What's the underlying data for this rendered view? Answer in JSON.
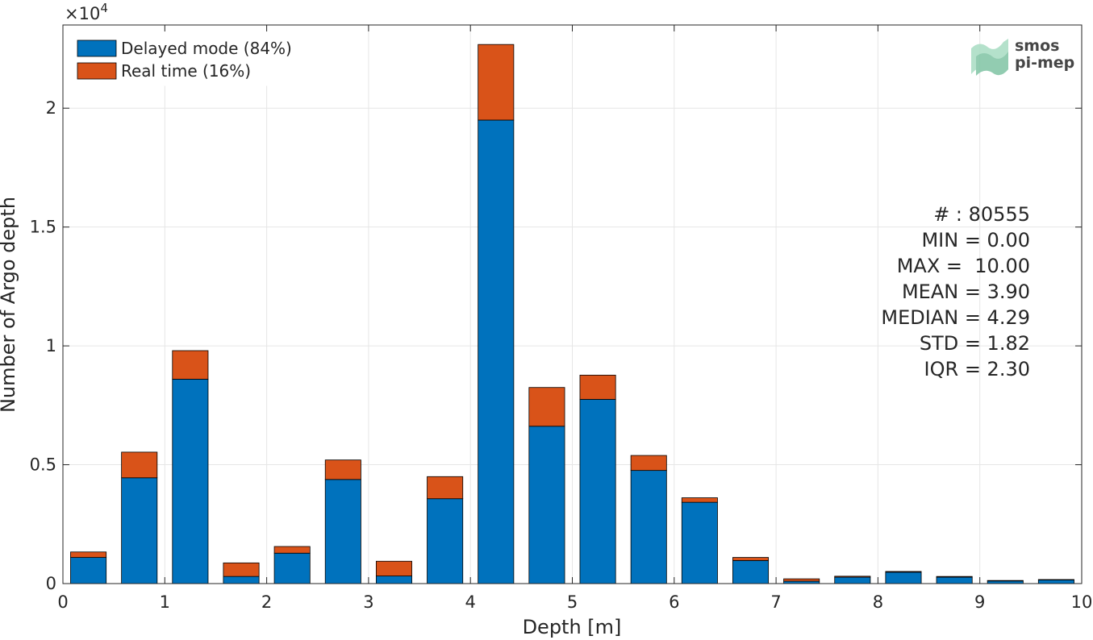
{
  "chart_data": {
    "type": "bar",
    "stacked": true,
    "xlabel": "Depth [m]",
    "ylabel": "Number of Argo depth",
    "xlim": [
      0,
      10
    ],
    "ylim": [
      0,
      23500
    ],
    "y_exponent_label": "×10",
    "y_exponent_power": "4",
    "xticks": [
      0,
      1,
      2,
      3,
      4,
      5,
      6,
      7,
      8,
      9,
      10
    ],
    "xtick_labels": [
      "0",
      "1",
      "2",
      "3",
      "4",
      "5",
      "6",
      "7",
      "8",
      "9",
      "10"
    ],
    "yticks": [
      0,
      5000,
      10000,
      15000,
      20000
    ],
    "ytick_labels": [
      "0",
      "0.5",
      "1",
      "1.5",
      "2"
    ],
    "grid": true,
    "legend_position": "top-left",
    "bar_width": 0.35,
    "x": [
      0.25,
      0.75,
      1.25,
      1.75,
      2.25,
      2.75,
      3.25,
      3.75,
      4.25,
      4.75,
      5.25,
      5.75,
      6.25,
      6.75,
      7.25,
      7.75,
      8.25,
      8.75,
      9.25,
      9.75
    ],
    "series": [
      {
        "name": "Delayed mode (84%)",
        "color": "#0072bd",
        "values": [
          1100,
          4450,
          8600,
          300,
          1280,
          4380,
          320,
          3570,
          19500,
          6620,
          7750,
          4760,
          3420,
          970,
          100,
          270,
          480,
          270,
          110,
          150
        ]
      },
      {
        "name": "Real time (16%)",
        "color": "#d95319",
        "values": [
          230,
          1080,
          1200,
          570,
          280,
          820,
          620,
          930,
          3180,
          1630,
          1020,
          630,
          190,
          130,
          100,
          40,
          30,
          30,
          20,
          20
        ]
      }
    ],
    "stats": [
      "# : 80555",
      "MIN = 0.00",
      "MAX =  10.00",
      "MEAN = 3.90",
      "MEDIAN = 4.29",
      "STD = 1.82",
      "IQR = 2.30"
    ]
  },
  "watermark": {
    "line1": "smos",
    "line2": "pi-mep",
    "color": "#7fc4a4"
  }
}
